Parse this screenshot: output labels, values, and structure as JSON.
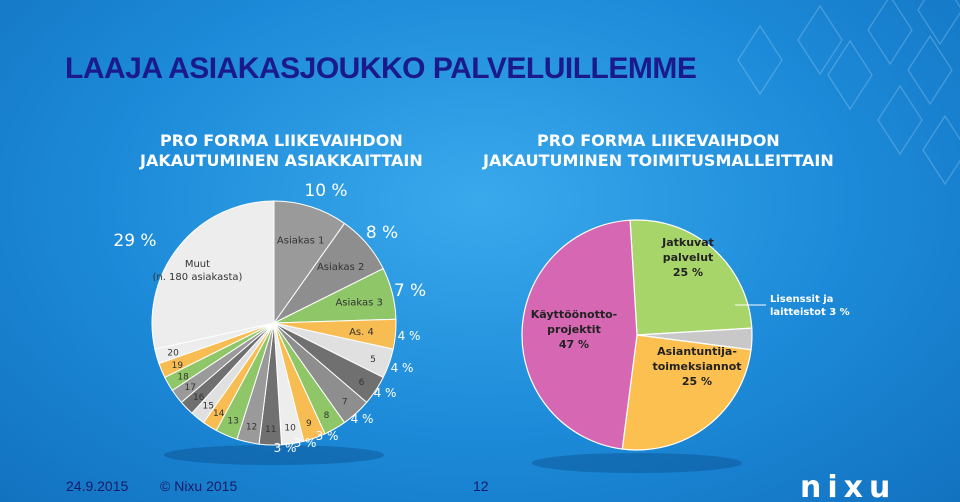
{
  "title": "LAAJA ASIAKASJOUKKO PALVELUILLEMME",
  "left_heading": {
    "line1": "PRO FORMA LIIKEVAIHDON",
    "line2": "JAKAUTUMINEN ASIAKKAITTAIN"
  },
  "right_heading": {
    "line1": "PRO FORMA LIIKEVAIHDON",
    "line2": "JAKAUTUMINEN TOIMITUSMALLEITTAIN"
  },
  "footer": {
    "date": "24.9.2015",
    "copyright": "© Nixu 2015",
    "page": "12"
  },
  "logo": "nixu",
  "chart_data": [
    {
      "type": "pie",
      "categories": [
        "Muut (n. 180 asiakasta)",
        "Asiakas 1",
        "Asiakas 2",
        "Asiakas 3",
        "As. 4",
        "5",
        "6",
        "7",
        "8",
        "9",
        "10",
        "11",
        "12",
        "13",
        "14",
        "15",
        "16",
        "17",
        "18",
        "19",
        "20"
      ],
      "values": [
        29,
        10,
        8,
        7,
        4,
        4,
        4,
        4,
        3,
        3,
        3,
        3,
        3,
        3,
        2,
        2,
        2,
        2,
        2,
        2,
        2
      ],
      "pct_labels": [
        "29 %",
        "10 %",
        "8 %",
        "7 %",
        "4 %",
        "4 %",
        "4 %",
        "4 %",
        "3 %",
        "3 %",
        "3 %"
      ],
      "colors": [
        "#ededed",
        "#9a9a9a",
        "#8e8e8e",
        "#8fc768",
        "#f7bd52",
        "#e0e0e0",
        "#707070",
        "#8e8e8e",
        "#8fc768",
        "#f7bd52",
        "#ededed",
        "#707070",
        "#9a9a9a",
        "#8fc768",
        "#f7bd52",
        "#e0e0e0",
        "#707070",
        "#9a9a9a",
        "#8fc768",
        "#f7bd52",
        "#ededed"
      ]
    },
    {
      "type": "pie",
      "categories": [
        "Jatkuvat palvelut",
        "Lisenssit ja laitteistot",
        "Asiantuntijatoimeksiannot",
        "Käyttöönottoprojektit"
      ],
      "labels": [
        "Jatkuvat\npalvelut\n25 %",
        "Lisenssit ja\nlaitteistot 3 %",
        "Asiantuntija-\ntoimeksiannot\n25 %",
        "Käyttöönotto-\nprojektit\n47 %"
      ],
      "values": [
        25,
        3,
        25,
        47
      ],
      "colors": [
        "#a8d56a",
        "#c8c8c8",
        "#fbc050",
        "#d668b3"
      ]
    }
  ],
  "colors": {
    "title": "#1a1a8c",
    "background": "#1c8ad8"
  }
}
